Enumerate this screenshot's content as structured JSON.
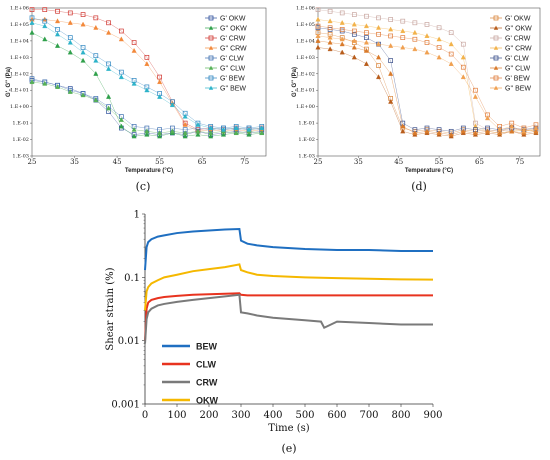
{
  "chart_data": [
    {
      "panel": "c",
      "type": "scatter",
      "caption": "(c)",
      "xlabel": "Temperature (°C)",
      "ylabel": "G', G'' (Pa)",
      "xlim": [
        25,
        80
      ],
      "ylim": [
        -3,
        6
      ],
      "yscale": "log",
      "xticks": [
        25,
        35,
        45,
        55,
        65,
        75
      ],
      "yticks": [
        6,
        5,
        4,
        3,
        2,
        1,
        0,
        -1,
        -2,
        -3
      ],
      "ytick_labels": [
        "1.E+06",
        "1.E+05",
        "1.E+04",
        "1.E+03",
        "1.E+02",
        "1.E+01",
        "1.E+00",
        "1.E-01",
        "1.E-02",
        "1.E-03"
      ],
      "legend_position": "right",
      "series": [
        {
          "name": "G' OKW",
          "color": "#2e4f9c",
          "marker": "square",
          "x": [
            25,
            28,
            31,
            34,
            37,
            40,
            43,
            46,
            49,
            52,
            55,
            58,
            61,
            64,
            67,
            70,
            73,
            76,
            79
          ],
          "y": [
            1.6,
            1.5,
            1.3,
            1.1,
            0.8,
            0.4,
            -0.3,
            -1.3,
            -1.7,
            -1.6,
            -1.7,
            -1.6,
            -1.7,
            -1.5,
            -1.7,
            -1.6,
            -1.5,
            -1.6,
            -1.5
          ]
        },
        {
          "name": "G'' OKW",
          "color": "#2fa04a",
          "marker": "triangle",
          "x": [
            25,
            28,
            31,
            34,
            37,
            40,
            43,
            46,
            49,
            52,
            55,
            58,
            61,
            64,
            67,
            70,
            73,
            76,
            79
          ],
          "y": [
            4.5,
            4.1,
            3.7,
            3.3,
            2.8,
            2.0,
            0.6,
            -1.2,
            -1.8,
            -1.7,
            -1.8,
            -1.6,
            -1.8,
            -1.7,
            -1.8,
            -1.7,
            -1.6,
            -1.7,
            -1.6
          ]
        },
        {
          "name": "G' CRW",
          "color": "#d0352f",
          "marker": "square",
          "x": [
            25,
            28,
            31,
            34,
            37,
            40,
            43,
            46,
            49,
            52,
            55,
            58,
            61,
            64,
            67,
            70,
            73,
            76,
            79
          ],
          "y": [
            5.9,
            5.9,
            5.8,
            5.7,
            5.6,
            5.4,
            5.1,
            4.6,
            3.9,
            3.0,
            1.8,
            0.3,
            -1.0,
            -1.4,
            -1.3,
            -1.4,
            -1.3,
            -1.4,
            -1.3
          ]
        },
        {
          "name": "G'' CRW",
          "color": "#f2883a",
          "marker": "triangle",
          "x": [
            25,
            28,
            31,
            34,
            37,
            40,
            43,
            46,
            49,
            52,
            55,
            58,
            61,
            64,
            67,
            70,
            73,
            76,
            79
          ],
          "y": [
            5.3,
            5.3,
            5.2,
            5.1,
            5.0,
            4.8,
            4.5,
            4.1,
            3.4,
            2.6,
            1.5,
            0.2,
            -1.1,
            -1.5,
            -1.4,
            -1.5,
            -1.4,
            -1.5,
            -1.4
          ]
        },
        {
          "name": "G' CLW",
          "color": "#3d6fb0",
          "marker": "square",
          "x": [
            25,
            28,
            31,
            34,
            37,
            40,
            43,
            46,
            49,
            52,
            55,
            58,
            61,
            64,
            67,
            70,
            73,
            76,
            79
          ],
          "y": [
            1.7,
            1.5,
            1.3,
            1.0,
            0.8,
            0.5,
            0.0,
            -0.6,
            -1.2,
            -1.3,
            -1.4,
            -1.3,
            -1.4,
            -1.3,
            -1.4,
            -1.3,
            -1.4,
            -1.3,
            -1.4
          ]
        },
        {
          "name": "G'' CLW",
          "color": "#55b055",
          "marker": "triangle",
          "x": [
            25,
            28,
            31,
            34,
            37,
            40,
            43,
            46,
            49,
            52,
            55,
            58,
            61,
            64,
            67,
            70,
            73,
            76,
            79
          ],
          "y": [
            1.5,
            1.4,
            1.2,
            0.9,
            0.7,
            0.4,
            -0.1,
            -0.8,
            -1.4,
            -1.5,
            -1.6,
            -1.5,
            -1.6,
            -1.5,
            -1.6,
            -1.5,
            -1.6,
            -1.5,
            -1.6
          ]
        },
        {
          "name": "G' BEW",
          "color": "#2e86c1",
          "marker": "square",
          "x": [
            25,
            28,
            31,
            34,
            37,
            40,
            43,
            46,
            49,
            52,
            55,
            58,
            61,
            64,
            67,
            70,
            73,
            76,
            79
          ],
          "y": [
            5.4,
            5.2,
            4.7,
            4.2,
            3.6,
            3.1,
            2.6,
            2.1,
            1.6,
            1.2,
            0.8,
            0.3,
            -0.4,
            -1.0,
            -1.2,
            -1.3,
            -1.2,
            -1.3,
            -1.2
          ]
        },
        {
          "name": "G'' BEW",
          "color": "#2cb3c9",
          "marker": "triangle",
          "x": [
            25,
            28,
            31,
            34,
            37,
            40,
            43,
            46,
            49,
            52,
            55,
            58,
            61,
            64,
            67,
            70,
            73,
            76,
            79
          ],
          "y": [
            5.1,
            4.9,
            4.4,
            3.9,
            3.3,
            2.8,
            2.3,
            1.8,
            1.4,
            1.0,
            0.6,
            0.1,
            -0.6,
            -1.1,
            -1.3,
            -1.4,
            -1.3,
            -1.4,
            -1.3
          ]
        }
      ]
    },
    {
      "panel": "d",
      "type": "scatter",
      "caption": "(d)",
      "xlabel": "Temperature (°C)",
      "ylabel": "G', G'' (Pa)",
      "xlim": [
        25,
        80
      ],
      "ylim": [
        -3,
        6
      ],
      "yscale": "log",
      "xticks": [
        25,
        35,
        45,
        55,
        65,
        75
      ],
      "yticks": [
        6,
        5,
        4,
        3,
        2,
        1,
        0,
        -1,
        -2,
        -3
      ],
      "ytick_labels": [
        "1.E+06",
        "1.E+05",
        "1.E+04",
        "1.E+03",
        "1.E+02",
        "1.E+01",
        "1.E+00",
        "1.E-01",
        "1.E-02",
        "1.E-03"
      ],
      "legend_position": "right",
      "series": [
        {
          "name": "G' OKW",
          "color": "#d9843a",
          "marker": "square",
          "x": [
            25,
            28,
            31,
            34,
            37,
            40,
            43,
            46,
            49,
            52,
            55,
            58,
            61,
            64,
            67,
            70,
            73,
            76,
            79
          ],
          "y": [
            4.5,
            4.4,
            4.2,
            3.9,
            3.5,
            2.5,
            0.5,
            -1.3,
            -1.5,
            -1.4,
            -1.5,
            -1.6,
            -1.4,
            -1.5,
            -1.4,
            -1.5,
            -1.3,
            -1.5,
            -1.4
          ]
        },
        {
          "name": "G'' OKW",
          "color": "#b85c1a",
          "marker": "triangle",
          "x": [
            25,
            28,
            31,
            34,
            37,
            40,
            43,
            46,
            49,
            52,
            55,
            58,
            61,
            64,
            67,
            70,
            73,
            76,
            79
          ],
          "y": [
            3.6,
            3.5,
            3.3,
            3.0,
            2.6,
            1.8,
            0.3,
            -1.5,
            -1.7,
            -1.6,
            -1.7,
            -1.8,
            -1.6,
            -1.7,
            -1.6,
            -1.7,
            -1.5,
            -1.7,
            -1.6
          ]
        },
        {
          "name": "G' CRW",
          "color": "#c8a6a0",
          "marker": "square",
          "x": [
            25,
            28,
            31,
            34,
            37,
            40,
            43,
            46,
            49,
            52,
            55,
            58,
            61,
            64,
            67,
            70,
            73,
            76,
            79
          ],
          "y": [
            5.9,
            5.8,
            5.7,
            5.6,
            5.5,
            5.4,
            5.3,
            5.2,
            5.1,
            5.0,
            4.8,
            4.5,
            3.8,
            -1.0,
            -1.4,
            -1.5,
            -1.4,
            -1.3,
            -1.4
          ]
        },
        {
          "name": "G'' CRW",
          "color": "#f2b24a",
          "marker": "triangle",
          "x": [
            25,
            28,
            31,
            34,
            37,
            40,
            43,
            46,
            49,
            52,
            55,
            58,
            61,
            64,
            67,
            70,
            73,
            76,
            79
          ],
          "y": [
            5.3,
            5.2,
            5.1,
            5.0,
            4.9,
            4.8,
            4.7,
            4.6,
            4.5,
            4.3,
            4.1,
            3.8,
            3.0,
            -1.2,
            -1.5,
            -1.6,
            -1.5,
            -1.4,
            -1.5
          ]
        },
        {
          "name": "G' CLW",
          "color": "#3a4f8a",
          "marker": "square",
          "x": [
            25,
            28,
            31,
            34,
            37,
            40,
            43,
            46,
            49,
            52,
            55,
            58,
            61,
            64,
            67,
            70,
            73,
            76,
            79
          ],
          "y": [
            4.8,
            4.7,
            4.6,
            4.4,
            4.2,
            3.8,
            2.8,
            -1.0,
            -1.4,
            -1.3,
            -1.4,
            -1.5,
            -1.3,
            -1.4,
            -1.3,
            -1.4,
            -1.3,
            -1.4,
            -1.3
          ]
        },
        {
          "name": "G'' CLW",
          "color": "#d97a2a",
          "marker": "triangle",
          "x": [
            25,
            28,
            31,
            34,
            37,
            40,
            43,
            46,
            49,
            52,
            55,
            58,
            61,
            64,
            67,
            70,
            73,
            76,
            79
          ],
          "y": [
            4.0,
            3.9,
            3.8,
            3.6,
            3.4,
            3.0,
            2.0,
            -1.2,
            -1.6,
            -1.5,
            -1.6,
            -1.7,
            -1.5,
            -1.6,
            -1.5,
            -1.6,
            -1.5,
            -1.6,
            -1.5
          ]
        },
        {
          "name": "G' BEW",
          "color": "#e07b39",
          "marker": "square",
          "x": [
            25,
            28,
            31,
            34,
            37,
            40,
            43,
            46,
            49,
            52,
            55,
            58,
            61,
            64,
            67,
            70,
            73,
            76,
            79
          ],
          "y": [
            4.9,
            4.8,
            4.7,
            4.6,
            4.5,
            4.4,
            4.3,
            4.2,
            4.1,
            3.9,
            3.6,
            3.2,
            2.4,
            1.0,
            -0.5,
            -1.2,
            -1.0,
            -1.3,
            -1.1
          ]
        },
        {
          "name": "G'' BEW",
          "color": "#f0a050",
          "marker": "triangle",
          "x": [
            25,
            28,
            31,
            34,
            37,
            40,
            43,
            46,
            49,
            52,
            55,
            58,
            61,
            64,
            67,
            70,
            73,
            76,
            79
          ],
          "y": [
            4.3,
            4.2,
            4.1,
            4.0,
            3.9,
            3.8,
            3.7,
            3.6,
            3.5,
            3.3,
            3.0,
            2.6,
            1.8,
            0.6,
            -0.7,
            -1.4,
            -1.2,
            -1.5,
            -1.3
          ]
        }
      ]
    },
    {
      "panel": "e",
      "type": "line",
      "caption": "(e)",
      "xlabel": "Time (s)",
      "ylabel": "Shear strain (%)",
      "xlim": [
        0,
        900
      ],
      "ylim": [
        0.001,
        1
      ],
      "yscale": "log",
      "xticks": [
        0,
        100,
        200,
        300,
        400,
        500,
        600,
        700,
        800,
        900
      ],
      "yticks": [
        1,
        0.1,
        0.01,
        0.001
      ],
      "ytick_labels": [
        "1",
        "0.1",
        "0.01",
        "0.001"
      ],
      "legend_position": "bottom-left",
      "series": [
        {
          "name": "BEW",
          "color": "#1f6fc1",
          "x": [
            0,
            5,
            10,
            20,
            40,
            60,
            100,
            150,
            200,
            250,
            295,
            300,
            320,
            350,
            400,
            500,
            600,
            700,
            800,
            900
          ],
          "y": [
            0.13,
            0.3,
            0.36,
            0.4,
            0.44,
            0.46,
            0.5,
            0.53,
            0.55,
            0.57,
            0.58,
            0.38,
            0.34,
            0.32,
            0.3,
            0.28,
            0.27,
            0.27,
            0.26,
            0.26
          ]
        },
        {
          "name": "CLW",
          "color": "#e8331f",
          "x": [
            0,
            5,
            10,
            20,
            40,
            60,
            100,
            150,
            200,
            250,
            295,
            300,
            320,
            350,
            400,
            500,
            600,
            700,
            800,
            900
          ],
          "y": [
            0.01,
            0.032,
            0.04,
            0.044,
            0.047,
            0.049,
            0.051,
            0.053,
            0.054,
            0.055,
            0.056,
            0.053,
            0.052,
            0.052,
            0.052,
            0.052,
            0.052,
            0.052,
            0.052,
            0.052
          ]
        },
        {
          "name": "CRW",
          "color": "#7a7a7a",
          "x": [
            0,
            5,
            10,
            20,
            40,
            60,
            100,
            150,
            200,
            250,
            295,
            300,
            320,
            350,
            400,
            450,
            500,
            550,
            560,
            600,
            700,
            800,
            900
          ],
          "y": [
            0.009,
            0.022,
            0.028,
            0.032,
            0.036,
            0.038,
            0.041,
            0.044,
            0.047,
            0.05,
            0.053,
            0.028,
            0.027,
            0.025,
            0.023,
            0.022,
            0.021,
            0.02,
            0.016,
            0.02,
            0.019,
            0.018,
            0.018
          ]
        },
        {
          "name": "OKW",
          "color": "#f5b800",
          "x": [
            0,
            5,
            10,
            20,
            40,
            60,
            100,
            150,
            200,
            250,
            295,
            300,
            320,
            350,
            400,
            500,
            600,
            700,
            800,
            900
          ],
          "y": [
            0.03,
            0.06,
            0.07,
            0.08,
            0.09,
            0.1,
            0.11,
            0.125,
            0.135,
            0.145,
            0.16,
            0.13,
            0.12,
            0.11,
            0.105,
            0.1,
            0.097,
            0.095,
            0.093,
            0.092
          ]
        }
      ]
    }
  ]
}
